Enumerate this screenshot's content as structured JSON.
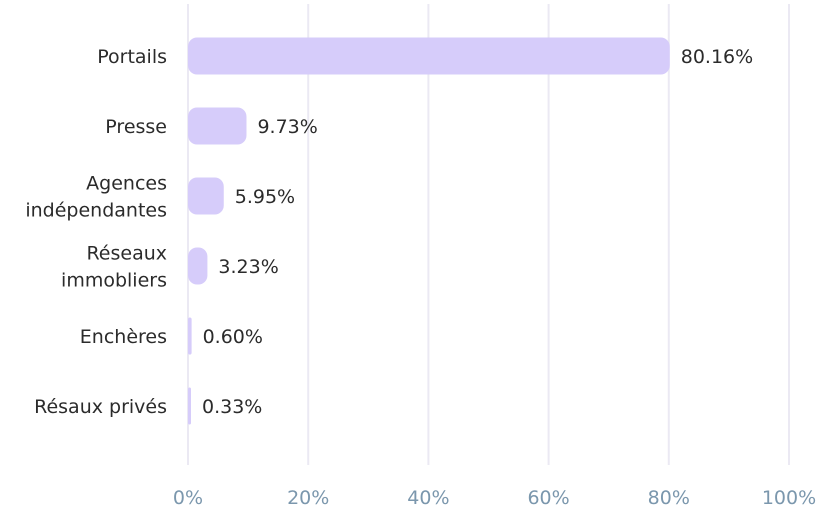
{
  "chart_data": {
    "type": "bar",
    "orientation": "horizontal",
    "categories": [
      [
        "Portails"
      ],
      [
        "Presse"
      ],
      [
        "Agences",
        "indépendantes"
      ],
      [
        "Réseaux",
        "immobliers"
      ],
      [
        "Enchères"
      ],
      [
        "Résaux privés"
      ]
    ],
    "values": [
      80.16,
      9.73,
      5.95,
      3.23,
      0.6,
      0.33
    ],
    "value_labels": [
      "80.16%",
      "9.73%",
      "5.95%",
      "3.23%",
      "0.60%",
      "0.33%"
    ],
    "x_ticks": [
      0,
      20,
      40,
      60,
      80,
      100
    ],
    "x_tick_labels": [
      "0%",
      "20%",
      "40%",
      "60%",
      "80%",
      "100%"
    ],
    "xlim": [
      0,
      100
    ],
    "grid": "vertical",
    "legend": "none",
    "title": "",
    "xlabel": "",
    "ylabel": "",
    "colors": {
      "bar": "#d6ccfa",
      "grid": "#ebe9f3",
      "tick_text": "#7b97ad",
      "label_text": "#2b2b2b"
    }
  }
}
